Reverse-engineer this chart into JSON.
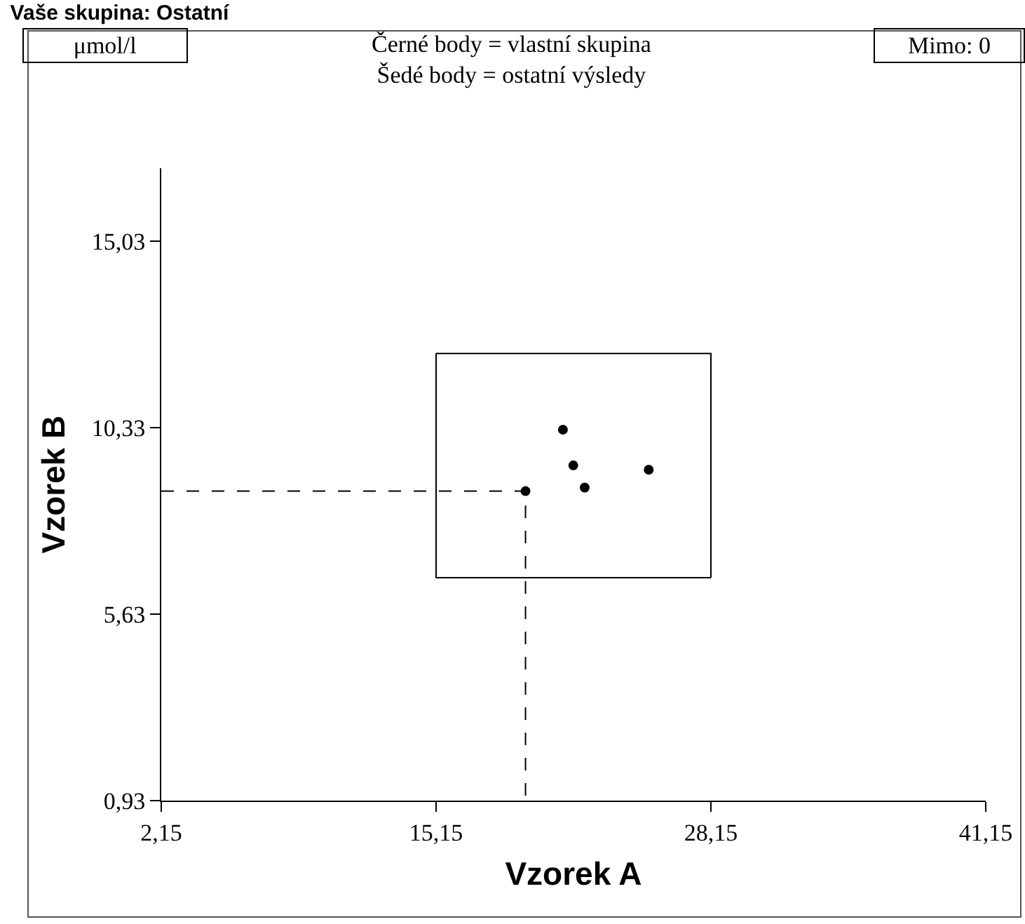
{
  "chart_data": {
    "type": "scatter",
    "title": "Vaše skupina: Ostatní",
    "xlabel": "Vzorek A",
    "ylabel": "Vzorek B",
    "annotations": [
      "μmol/l",
      "Černé body = vlastní skupina\nŠedé body = ostatní výsledy",
      "Mimo: 0"
    ],
    "series": [
      {
        "type": "line",
        "color": "#000000",
        "line_style": "solid",
        "marker": "none",
        "x": [
          15.15,
          28.15,
          28.15
        ],
        "values": [
          12.2,
          12.2,
          6.55
        ]
      },
      {
        "type": "line",
        "color": "#000000",
        "line_style": "solid",
        "marker": "none",
        "x": [
          28.15,
          15.15,
          15.15
        ],
        "values": [
          6.55,
          6.55,
          12.2
        ]
      },
      {
        "type": "line",
        "color": "#000000",
        "line_style": "dashed",
        "marker": "none",
        "x": [
          2.15,
          19.38,
          19.38
        ],
        "values": [
          8.73,
          8.73,
          0.93
        ]
      },
      {
        "color": "#000000",
        "marker": "circle",
        "x": [
          21.15,
          21.64,
          22.18,
          25.21,
          19.38
        ],
        "values": [
          10.28,
          9.38,
          8.82,
          9.27,
          8.73
        ]
      }
    ],
    "xlim": [
      2.15,
      41.15
    ],
    "xticks": [
      {
        "value": 2.15,
        "label": "2,15"
      },
      {
        "value": 15.15,
        "label": "15,15"
      },
      {
        "value": 28.15,
        "label": "28,15"
      },
      {
        "value": 41.15,
        "label": "41,15"
      }
    ],
    "ylim": [
      0.93,
      16.87
    ],
    "yticks": [
      {
        "value": 0.93,
        "label": "0,93"
      },
      {
        "value": 5.63,
        "label": "5,63"
      },
      {
        "value": 10.33,
        "label": "10,33"
      },
      {
        "value": 15.03,
        "label": "15,03"
      }
    ],
    "grid": false
  }
}
